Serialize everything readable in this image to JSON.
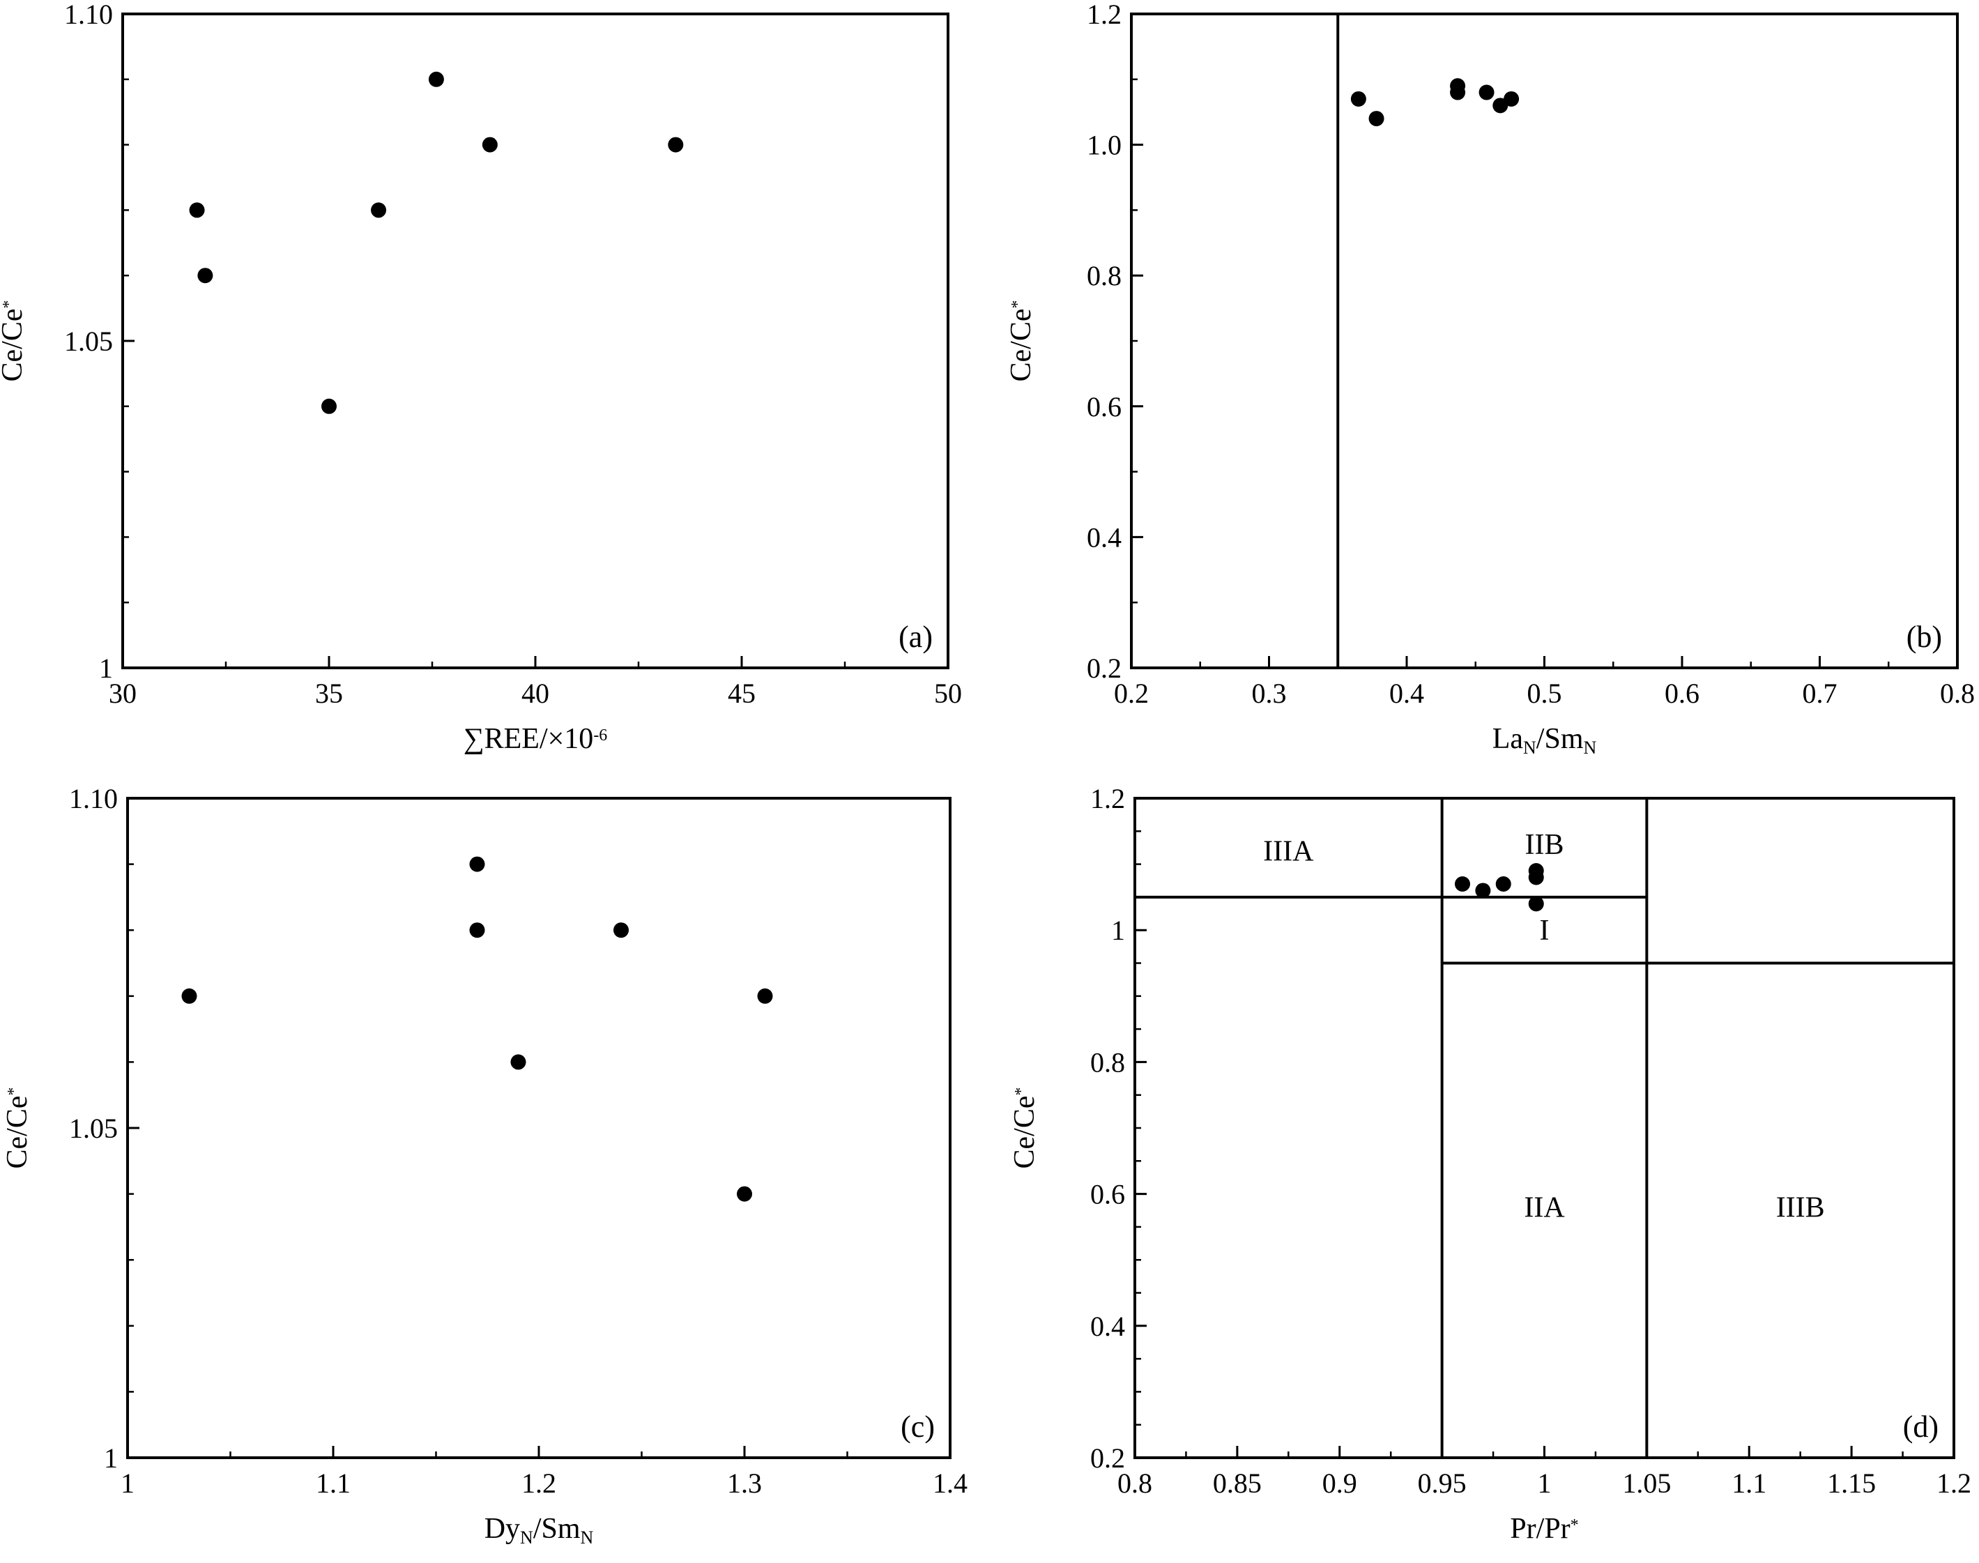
{
  "chart_data": [
    {
      "id": "a",
      "type": "scatter",
      "panel_label": "(a)",
      "xlabel": {
        "main": "∑REE/×10",
        "sup": "-6"
      },
      "ylabel": {
        "main": "Ce/Ce",
        "sup": "*"
      },
      "xlim": [
        30,
        50
      ],
      "ylim": [
        1.0,
        1.1
      ],
      "xticks": [
        30,
        35,
        40,
        45,
        50
      ],
      "xtick_labels": [
        "30",
        "35",
        "40",
        "45",
        "50"
      ],
      "yticks": [
        1.0,
        1.05,
        1.1
      ],
      "ytick_labels": [
        "1",
        "1.05",
        "1.10"
      ],
      "x_minor_step": 2.5,
      "y_minor_step": 0.01,
      "grid": false,
      "points": [
        {
          "x": 31.8,
          "y": 1.07
        },
        {
          "x": 32.0,
          "y": 1.06
        },
        {
          "x": 35.0,
          "y": 1.04
        },
        {
          "x": 36.2,
          "y": 1.07
        },
        {
          "x": 37.6,
          "y": 1.09
        },
        {
          "x": 38.9,
          "y": 1.08
        },
        {
          "x": 43.4,
          "y": 1.08
        }
      ],
      "lines": [],
      "regions": []
    },
    {
      "id": "b",
      "type": "scatter",
      "panel_label": "(b)",
      "xlabel": {
        "parts": [
          {
            "t": "La"
          },
          {
            "t": "N",
            "sub": true
          },
          {
            "t": "/Sm"
          },
          {
            "t": "N",
            "sub": true
          }
        ]
      },
      "ylabel": {
        "main": "Ce/Ce",
        "sup": "*"
      },
      "xlim": [
        0.2,
        0.8
      ],
      "ylim": [
        0.2,
        1.2
      ],
      "xticks": [
        0.2,
        0.3,
        0.4,
        0.5,
        0.6,
        0.7,
        0.8
      ],
      "xtick_labels": [
        "0.2",
        "0.3",
        "0.4",
        "0.5",
        "0.6",
        "0.7",
        "0.8"
      ],
      "yticks": [
        0.2,
        0.4,
        0.6,
        0.8,
        1.0,
        1.2
      ],
      "ytick_labels": [
        "0.2",
        "0.4",
        "0.6",
        "0.8",
        "1.0",
        "1.2"
      ],
      "x_minor_step": 0.05,
      "y_minor_step": 0.1,
      "grid": false,
      "points": [
        {
          "x": 0.365,
          "y": 1.07
        },
        {
          "x": 0.378,
          "y": 1.04
        },
        {
          "x": 0.437,
          "y": 1.08
        },
        {
          "x": 0.437,
          "y": 1.09
        },
        {
          "x": 0.458,
          "y": 1.08
        },
        {
          "x": 0.468,
          "y": 1.06
        },
        {
          "x": 0.476,
          "y": 1.07
        }
      ],
      "lines": [
        {
          "x1": 0.35,
          "y1": 0.2,
          "x2": 0.35,
          "y2": 1.2
        }
      ],
      "regions": []
    },
    {
      "id": "c",
      "type": "scatter",
      "panel_label": "(c)",
      "xlabel": {
        "parts": [
          {
            "t": "Dy"
          },
          {
            "t": "N",
            "sub": true
          },
          {
            "t": "/Sm"
          },
          {
            "t": "N",
            "sub": true
          }
        ]
      },
      "ylabel": {
        "main": "Ce/Ce",
        "sup": "*"
      },
      "xlim": [
        1.0,
        1.4
      ],
      "ylim": [
        1.0,
        1.1
      ],
      "xticks": [
        1.0,
        1.1,
        1.2,
        1.3,
        1.4
      ],
      "xtick_labels": [
        "1",
        "1.1",
        "1.2",
        "1.3",
        "1.4"
      ],
      "yticks": [
        1.0,
        1.05,
        1.1
      ],
      "ytick_labels": [
        "1",
        "1.05",
        "1.10"
      ],
      "x_minor_step": 0.05,
      "y_minor_step": 0.01,
      "grid": false,
      "points": [
        {
          "x": 1.03,
          "y": 1.07
        },
        {
          "x": 1.17,
          "y": 1.09
        },
        {
          "x": 1.17,
          "y": 1.08
        },
        {
          "x": 1.19,
          "y": 1.06
        },
        {
          "x": 1.24,
          "y": 1.08
        },
        {
          "x": 1.3,
          "y": 1.04
        },
        {
          "x": 1.31,
          "y": 1.07
        }
      ],
      "lines": [],
      "regions": []
    },
    {
      "id": "d",
      "type": "scatter",
      "panel_label": "(d)",
      "xlabel": {
        "main": "Pr/Pr",
        "sup": "*"
      },
      "ylabel": {
        "main": "Ce/Ce",
        "sup": "*"
      },
      "xlim": [
        0.8,
        1.2
      ],
      "ylim": [
        0.2,
        1.2
      ],
      "xticks": [
        0.8,
        0.85,
        0.9,
        0.95,
        1.0,
        1.05,
        1.1,
        1.15,
        1.2
      ],
      "xtick_labels": [
        "0.8",
        "0.85",
        "0.9",
        "0.95",
        "1",
        "1.05",
        "1.1",
        "1.15",
        "1.2"
      ],
      "yticks": [
        0.2,
        0.4,
        0.6,
        0.8,
        1.0,
        1.2
      ],
      "ytick_labels": [
        "0.2",
        "0.4",
        "0.6",
        "0.8",
        "1",
        "1.2"
      ],
      "x_minor_step": 0.025,
      "y_minor_step": 0.05,
      "grid": false,
      "points": [
        {
          "x": 0.96,
          "y": 1.07
        },
        {
          "x": 0.97,
          "y": 1.06
        },
        {
          "x": 0.98,
          "y": 1.07
        },
        {
          "x": 0.996,
          "y": 1.09
        },
        {
          "x": 0.996,
          "y": 1.08
        },
        {
          "x": 0.996,
          "y": 1.04
        }
      ],
      "lines": [
        {
          "x1": 0.95,
          "y1": 0.2,
          "x2": 0.95,
          "y2": 1.2
        },
        {
          "x1": 1.05,
          "y1": 0.2,
          "x2": 1.05,
          "y2": 1.2
        },
        {
          "x1": 0.8,
          "y1": 1.05,
          "x2": 1.05,
          "y2": 1.05
        },
        {
          "x1": 0.95,
          "y1": 0.95,
          "x2": 1.2,
          "y2": 0.95
        }
      ],
      "regions": [
        {
          "label": "IIIA",
          "x": 0.875,
          "y": 1.12
        },
        {
          "label": "IIB",
          "x": 1.0,
          "y": 1.13
        },
        {
          "label": "I",
          "x": 1.0,
          "y": 1.0
        },
        {
          "label": "IIA",
          "x": 1.0,
          "y": 0.58
        },
        {
          "label": "IIIB",
          "x": 1.125,
          "y": 0.58
        }
      ]
    }
  ]
}
